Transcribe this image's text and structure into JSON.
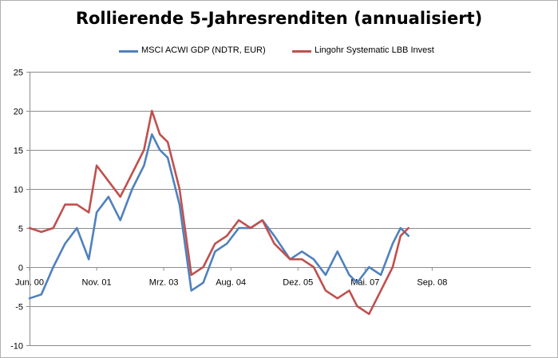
{
  "chart_data": {
    "type": "line",
    "title": "Rollierende 5-Jahresrenditen (annualisiert)",
    "xlabel": "",
    "ylabel": "",
    "ylim": [
      -10,
      25
    ],
    "yticks": [
      25,
      20,
      15,
      10,
      5,
      0,
      -5,
      -10
    ],
    "grid": true,
    "legend_position": "top",
    "x_tick_labels": [
      "Jun. 00",
      "Nov. 01",
      "Mrz. 03",
      "Aug. 04",
      "Dez. 05",
      "Mai. 07",
      "Sep. 08"
    ],
    "x": [
      "2000-06",
      "2000-09",
      "2000-12",
      "2001-03",
      "2001-06",
      "2001-09",
      "2001-11",
      "2002-02",
      "2002-05",
      "2002-08",
      "2002-11",
      "2003-01",
      "2003-03",
      "2003-05",
      "2003-08",
      "2003-11",
      "2004-02",
      "2004-05",
      "2004-08",
      "2004-11",
      "2005-02",
      "2005-05",
      "2005-08",
      "2005-12",
      "2006-03",
      "2006-06",
      "2006-09",
      "2006-12",
      "2007-03",
      "2007-05",
      "2007-08",
      "2007-11",
      "2008-02",
      "2008-04",
      "2008-06"
    ],
    "series": [
      {
        "name": "MSCI ACWI GDP (NDTR, EUR)",
        "color": "#4f81bd",
        "values": [
          -4,
          -3.5,
          0,
          3,
          5,
          1,
          7,
          9,
          6,
          10,
          13,
          17,
          15,
          14,
          8,
          -3,
          -2,
          2,
          3,
          5,
          5,
          6,
          4,
          1,
          2,
          1,
          -1,
          2,
          -1,
          -2,
          0,
          -1,
          3,
          5,
          4
        ]
      },
      {
        "name": "Lingohr Systematic LBB Invest",
        "color": "#c0504d",
        "values": [
          5,
          4.5,
          5,
          8,
          8,
          7,
          13,
          11,
          9,
          12,
          15,
          20,
          17,
          16,
          10,
          -1,
          0,
          3,
          4,
          6,
          5,
          6,
          3,
          1,
          1,
          0,
          -3,
          -4,
          -3,
          -5,
          -6,
          -3,
          0,
          4,
          5
        ]
      }
    ]
  }
}
